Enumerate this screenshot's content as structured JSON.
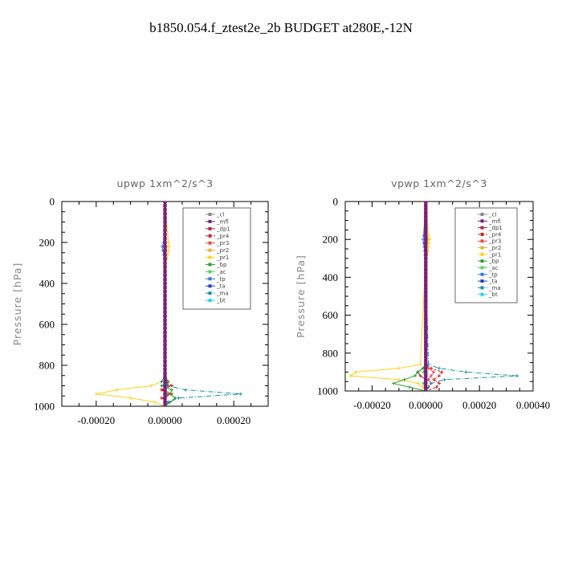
{
  "figure_title": "b1850.054.f_ztest2e_2b  BUDGET at280E,-12N",
  "chart_data": [
    {
      "type": "line",
      "title": "upwp   1xm^2/s^3",
      "ylabel": "Pressure [hPa]",
      "xlabel": "",
      "xlim": [
        -0.0003,
        0.0003
      ],
      "ylim": [
        1000,
        0
      ],
      "xticks": [
        -0.0002,
        0.0,
        0.0002
      ],
      "xtick_labels": [
        "-0.00020",
        "0.00000",
        "0.00020"
      ],
      "yticks": [
        0,
        200,
        400,
        600,
        800,
        1000
      ],
      "ytick_labels": [
        "0",
        "200",
        "400",
        "600",
        "800",
        "1000"
      ],
      "legend_position": "upper-right",
      "grid": false,
      "pressure": [
        0,
        200,
        220,
        240,
        260,
        280,
        300,
        850,
        880,
        900,
        920,
        940,
        960,
        980,
        1000
      ],
      "series": [
        {
          "name": "_cl",
          "color": "#888888",
          "dash": "",
          "values": [
            0,
            0,
            0,
            0,
            0,
            0,
            0,
            0,
            0,
            0,
            0,
            0,
            0,
            0,
            0
          ]
        },
        {
          "name": "_mfl",
          "color": "#7a1f7a",
          "dash": "",
          "values": [
            0,
            0,
            0,
            0,
            0,
            0,
            0,
            0,
            0,
            0,
            0,
            0,
            0,
            0,
            0
          ]
        },
        {
          "name": "_dp1",
          "color": "#a0304a",
          "dash": "",
          "values": [
            0,
            0,
            0,
            0,
            0,
            0,
            0,
            0,
            5e-06,
            1e-05,
            -8e-06,
            1e-05,
            0,
            0,
            0
          ]
        },
        {
          "name": "_pr4",
          "color": "#d02020",
          "dash": "3,2",
          "values": [
            0,
            0,
            0,
            0,
            0,
            0,
            0,
            0,
            5e-06,
            2e-05,
            -1e-05,
            2e-05,
            -1e-05,
            1e-05,
            0
          ]
        },
        {
          "name": "_pr3",
          "color": "#e85050",
          "dash": "",
          "values": [
            0,
            0,
            0,
            0,
            0,
            0,
            0,
            0,
            0,
            1e-05,
            0,
            1.5e-05,
            0,
            0,
            0
          ]
        },
        {
          "name": "_pr2",
          "color": "#e8b030",
          "dash": "",
          "values": [
            0,
            0,
            5e-06,
            4e-06,
            3e-06,
            0,
            0,
            0,
            0,
            0,
            0,
            0,
            0,
            0,
            0
          ]
        },
        {
          "name": "_pr1",
          "color": "#ffd21a",
          "dash": "",
          "values": [
            0,
            1e-05,
            1.2e-05,
            1e-05,
            8e-06,
            6e-06,
            0,
            0,
            -1e-05,
            -4e-05,
            -0.00014,
            -0.0002,
            -0.0001,
            -3e-05,
            0
          ]
        },
        {
          "name": "_bp",
          "color": "#30a030",
          "dash": "",
          "values": [
            0,
            0,
            0,
            0,
            0,
            0,
            0,
            0,
            1e-05,
            -1e-05,
            2e-05,
            1.5e-05,
            3e-05,
            1.5e-05,
            0
          ]
        },
        {
          "name": "_ac",
          "color": "#60d060",
          "dash": "",
          "values": [
            0,
            0,
            0,
            0,
            0,
            0,
            0,
            0,
            0,
            5e-06,
            0,
            5e-06,
            0,
            0,
            0
          ]
        },
        {
          "name": "_tp",
          "color": "#3a78d8",
          "dash": "",
          "values": [
            0,
            -4e-06,
            -8e-06,
            -6e-06,
            -4e-06,
            -2e-06,
            0,
            0,
            0,
            0,
            0,
            0,
            0,
            0,
            0
          ]
        },
        {
          "name": "_ta",
          "color": "#2040c0",
          "dash": "",
          "values": [
            0,
            0,
            0,
            0,
            0,
            0,
            0,
            0,
            0,
            0,
            0,
            0,
            0,
            0,
            0
          ]
        },
        {
          "name": "_ma",
          "color": "#1890a8",
          "dash": "6,2,1,2",
          "values": [
            0,
            0,
            0,
            0,
            0,
            0,
            0,
            0,
            -1e-05,
            1e-05,
            6e-05,
            0.00022,
            4e-05,
            1e-05,
            0
          ]
        },
        {
          "name": "_bt",
          "color": "#20d8e8",
          "dash": "",
          "values": [
            0,
            0,
            0,
            0,
            0,
            0,
            0,
            0,
            0,
            0,
            0,
            0,
            0,
            0,
            0
          ]
        }
      ]
    },
    {
      "type": "line",
      "title": "vpwp   1xm^2/s^3",
      "ylabel": "Pressure [hPa]",
      "xlabel": "",
      "xlim": [
        -0.0003,
        0.0004
      ],
      "ylim": [
        1000,
        0
      ],
      "xticks": [
        -0.0002,
        0.0,
        0.0002,
        0.0004
      ],
      "xtick_labels": [
        "-0.00020",
        "0.00000",
        "0.00020",
        "0.00040"
      ],
      "yticks": [
        0,
        200,
        400,
        600,
        800,
        1000
      ],
      "ytick_labels": [
        "0",
        "200",
        "400",
        "600",
        "800",
        "1000"
      ],
      "legend_position": "upper-right",
      "grid": false,
      "pressure": [
        0,
        180,
        200,
        220,
        240,
        260,
        280,
        300,
        860,
        880,
        900,
        920,
        940,
        960,
        980,
        1000
      ],
      "series": [
        {
          "name": "_cl",
          "color": "#888888",
          "dash": "",
          "values": [
            0,
            0,
            0,
            0,
            0,
            0,
            0,
            0,
            0,
            0,
            0,
            0,
            0,
            0,
            0,
            0
          ]
        },
        {
          "name": "_mfl",
          "color": "#7a1f7a",
          "dash": "",
          "values": [
            0,
            0,
            0,
            0,
            0,
            0,
            0,
            0,
            0,
            0,
            0,
            0,
            0,
            0,
            0,
            0
          ]
        },
        {
          "name": "_dp1",
          "color": "#a0304a",
          "dash": "",
          "values": [
            0,
            0,
            0,
            0,
            0,
            0,
            0,
            0,
            0,
            -1e-05,
            -3e-05,
            -2e-05,
            0,
            0,
            0,
            0
          ]
        },
        {
          "name": "_pr4",
          "color": "#d02020",
          "dash": "3,2",
          "values": [
            0,
            0,
            0,
            0,
            0,
            0,
            0,
            0,
            0,
            2e-05,
            6e-05,
            5e-05,
            3e-05,
            5e-05,
            4e-05,
            0
          ]
        },
        {
          "name": "_pr3",
          "color": "#e85050",
          "dash": "",
          "values": [
            0,
            0,
            0,
            0,
            0,
            0,
            0,
            0,
            0,
            1e-05,
            3e-05,
            2e-05,
            1e-05,
            2e-05,
            1e-05,
            0
          ]
        },
        {
          "name": "_pr2",
          "color": "#e8b030",
          "dash": "",
          "values": [
            0,
            5e-06,
            8e-06,
            6e-06,
            4e-06,
            3e-06,
            2e-06,
            0,
            0,
            0,
            0,
            0,
            0,
            0,
            0,
            0
          ]
        },
        {
          "name": "_pr1",
          "color": "#ffd21a",
          "dash": "",
          "values": [
            0,
            1e-05,
            1.5e-05,
            1.2e-05,
            1e-05,
            8e-06,
            6e-06,
            0,
            -2e-05,
            -0.0001,
            -0.00026,
            -0.00028,
            -0.0001,
            -3e-05,
            -1e-05,
            0
          ]
        },
        {
          "name": "_bp",
          "color": "#30a030",
          "dash": "",
          "values": [
            0,
            0,
            0,
            0,
            0,
            0,
            0,
            0,
            0,
            -1e-05,
            -3e-05,
            -4e-05,
            -8e-05,
            -0.00012,
            -6e-05,
            0
          ]
        },
        {
          "name": "_ac",
          "color": "#60d060",
          "dash": "",
          "values": [
            0,
            0,
            0,
            0,
            0,
            0,
            0,
            0,
            0,
            0,
            -1e-05,
            0,
            0,
            -1e-05,
            0,
            0
          ]
        },
        {
          "name": "_tp",
          "color": "#3a78d8",
          "dash": "",
          "values": [
            0,
            -8e-06,
            -1e-05,
            -8e-06,
            -6e-06,
            -4e-06,
            -2e-06,
            0,
            0,
            0,
            0,
            0,
            0,
            0,
            0,
            0
          ]
        },
        {
          "name": "_ta",
          "color": "#2040c0",
          "dash": "",
          "values": [
            0,
            0,
            0,
            0,
            0,
            0,
            0,
            0,
            0,
            0,
            0,
            0,
            0,
            0,
            0,
            0
          ]
        },
        {
          "name": "_ma",
          "color": "#1890a8",
          "dash": "6,2,1,2",
          "values": [
            0,
            0,
            0,
            0,
            0,
            0,
            0,
            0,
            1e-05,
            5e-05,
            0.00015,
            0.00034,
            7e-05,
            2e-05,
            1e-05,
            0
          ]
        },
        {
          "name": "_bt",
          "color": "#20d8e8",
          "dash": "",
          "values": [
            0,
            0,
            0,
            0,
            0,
            0,
            0,
            0,
            0,
            0,
            0,
            0,
            0,
            0,
            0,
            0
          ]
        }
      ]
    }
  ]
}
